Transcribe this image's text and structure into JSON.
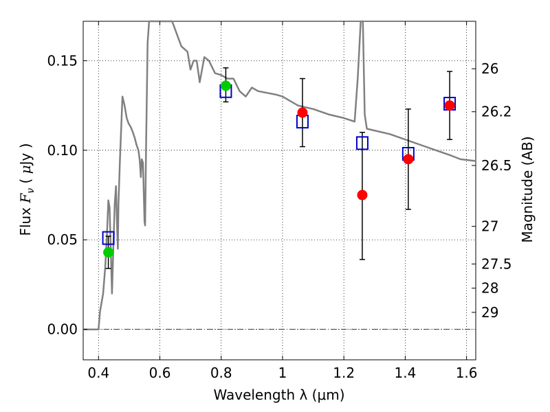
{
  "chart_data": {
    "type": "scatter",
    "xlabel": "Wavelength  λ (μm)",
    "ylabel_parts": [
      "Flux  ",
      "F",
      "ν",
      "  (  ",
      "μ",
      "Jy )"
    ],
    "ylabel_right": "Magnitude (AB)",
    "xlim": [
      0.35,
      1.63
    ],
    "ylim": [
      -0.017,
      0.172
    ],
    "x_ticks": [
      0.4,
      0.6,
      0.8,
      1.0,
      1.2,
      1.4,
      1.6
    ],
    "x_tick_labels": [
      "0.4",
      "0.6",
      "0.8",
      "1",
      "1.2",
      "1.4",
      "1.6"
    ],
    "y_ticks": [
      0.0,
      0.05,
      0.1,
      0.15
    ],
    "y_tick_labels": [
      "0.00",
      "0.05",
      "0.10",
      "0.15"
    ],
    "mag_ticks": [
      {
        "label": "26",
        "flux": 0.1455
      },
      {
        "label": "26.2",
        "flux": 0.1215
      },
      {
        "label": "26.5",
        "flux": 0.0915
      },
      {
        "label": "27",
        "flux": 0.0575
      },
      {
        "label": "27.5",
        "flux": 0.0365
      },
      {
        "label": "28",
        "flux": 0.023
      },
      {
        "label": "29",
        "flux": 0.0095
      }
    ],
    "grid": true,
    "zero_line": true,
    "series": [
      {
        "kind": "model_sed",
        "color": "#808080",
        "points": [
          [
            0.35,
            0.0
          ],
          [
            0.4,
            0.0
          ],
          [
            0.405,
            0.01
          ],
          [
            0.415,
            0.02
          ],
          [
            0.422,
            0.035
          ],
          [
            0.428,
            0.055
          ],
          [
            0.432,
            0.072
          ],
          [
            0.436,
            0.068
          ],
          [
            0.44,
            0.045
          ],
          [
            0.444,
            0.02
          ],
          [
            0.449,
            0.05
          ],
          [
            0.453,
            0.07
          ],
          [
            0.457,
            0.08
          ],
          [
            0.46,
            0.06
          ],
          [
            0.463,
            0.045
          ],
          [
            0.465,
            0.07
          ],
          [
            0.47,
            0.095
          ],
          [
            0.478,
            0.13
          ],
          [
            0.485,
            0.125
          ],
          [
            0.492,
            0.118
          ],
          [
            0.498,
            0.115
          ],
          [
            0.505,
            0.113
          ],
          [
            0.512,
            0.11
          ],
          [
            0.518,
            0.107
          ],
          [
            0.524,
            0.103
          ],
          [
            0.53,
            0.1
          ],
          [
            0.534,
            0.095
          ],
          [
            0.538,
            0.085
          ],
          [
            0.541,
            0.095
          ],
          [
            0.545,
            0.093
          ],
          [
            0.55,
            0.06
          ],
          [
            0.552,
            0.058
          ],
          [
            0.555,
            0.1
          ],
          [
            0.56,
            0.16
          ],
          [
            0.565,
            0.172
          ],
          [
            0.64,
            0.172
          ],
          [
            0.655,
            0.165
          ],
          [
            0.67,
            0.158
          ],
          [
            0.69,
            0.155
          ],
          [
            0.7,
            0.145
          ],
          [
            0.71,
            0.15
          ],
          [
            0.72,
            0.15
          ],
          [
            0.73,
            0.138
          ],
          [
            0.745,
            0.152
          ],
          [
            0.76,
            0.15
          ],
          [
            0.78,
            0.143
          ],
          [
            0.8,
            0.142
          ],
          [
            0.82,
            0.14
          ],
          [
            0.84,
            0.14
          ],
          [
            0.86,
            0.133
          ],
          [
            0.88,
            0.13
          ],
          [
            0.9,
            0.135
          ],
          [
            0.92,
            0.133
          ],
          [
            0.95,
            0.132
          ],
          [
            0.98,
            0.131
          ],
          [
            1.0,
            0.13
          ],
          [
            1.02,
            0.128
          ],
          [
            1.05,
            0.125
          ],
          [
            1.1,
            0.123
          ],
          [
            1.15,
            0.12
          ],
          [
            1.2,
            0.118
          ],
          [
            1.235,
            0.116
          ],
          [
            1.245,
            0.14
          ],
          [
            1.255,
            0.172
          ],
          [
            1.262,
            0.172
          ],
          [
            1.268,
            0.12
          ],
          [
            1.275,
            0.112
          ],
          [
            1.3,
            0.111
          ],
          [
            1.35,
            0.109
          ],
          [
            1.4,
            0.106
          ],
          [
            1.45,
            0.103
          ],
          [
            1.5,
            0.1
          ],
          [
            1.55,
            0.097
          ],
          [
            1.58,
            0.095
          ],
          [
            1.63,
            0.094
          ]
        ]
      },
      {
        "kind": "photometry",
        "color": "#ff0000",
        "marker": "circle",
        "points": [
          {
            "x": 1.065,
            "y": 0.121,
            "err": [
              0.102,
              0.14
            ]
          },
          {
            "x": 1.26,
            "y": 0.075,
            "err": [
              0.039,
              0.11
            ]
          },
          {
            "x": 1.41,
            "y": 0.095,
            "err": [
              0.067,
              0.123
            ]
          },
          {
            "x": 1.545,
            "y": 0.125,
            "err": [
              0.106,
              0.144
            ]
          }
        ]
      },
      {
        "kind": "photometry",
        "color": "#00cc00",
        "marker": "circle",
        "points": [
          {
            "x": 0.432,
            "y": 0.043,
            "err": [
              0.034,
              0.052
            ]
          },
          {
            "x": 0.815,
            "y": 0.136,
            "err": [
              0.127,
              0.146
            ]
          }
        ]
      },
      {
        "kind": "model_photometry",
        "color": "#0000cc",
        "marker": "open-square",
        "points": [
          {
            "x": 0.432,
            "y": 0.051
          },
          {
            "x": 0.815,
            "y": 0.133
          },
          {
            "x": 1.065,
            "y": 0.116
          },
          {
            "x": 1.26,
            "y": 0.104
          },
          {
            "x": 1.41,
            "y": 0.098
          },
          {
            "x": 1.545,
            "y": 0.126
          }
        ]
      }
    ]
  }
}
